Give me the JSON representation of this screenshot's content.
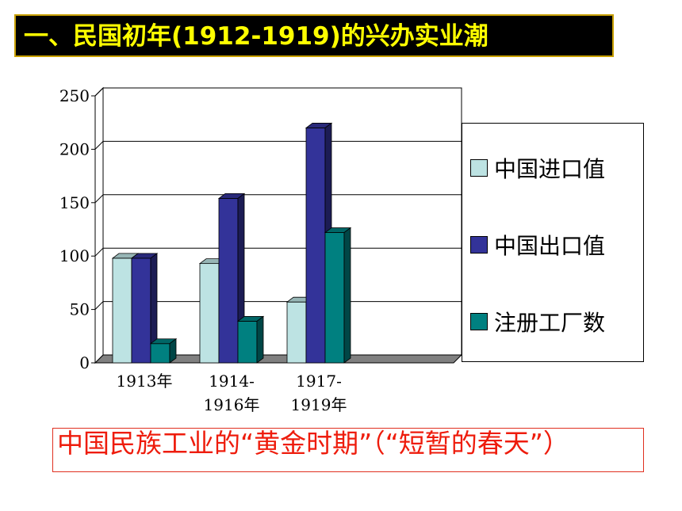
{
  "heading": "一、民国初年(1912-1919)的兴办实业潮",
  "chart_data": {
    "type": "bar",
    "categories": [
      "1913年",
      "1914-\n1916年",
      "1917-\n1919年"
    ],
    "series": [
      {
        "name": "中国进口值",
        "values": [
          98,
          93,
          57
        ],
        "color": "#bde3e3"
      },
      {
        "name": "中国出口值",
        "values": [
          98,
          154,
          220
        ],
        "color": "#333399"
      },
      {
        "name": "注册工厂数",
        "values": [
          18,
          39,
          122
        ],
        "color": "#008080"
      }
    ],
    "yticks": [
      0,
      50,
      100,
      150,
      200,
      250
    ],
    "ylim": [
      0,
      250
    ],
    "grid": true,
    "legend": "right"
  },
  "caption": "中国民族工业的“黄金时期”（“短暂的春天”）"
}
